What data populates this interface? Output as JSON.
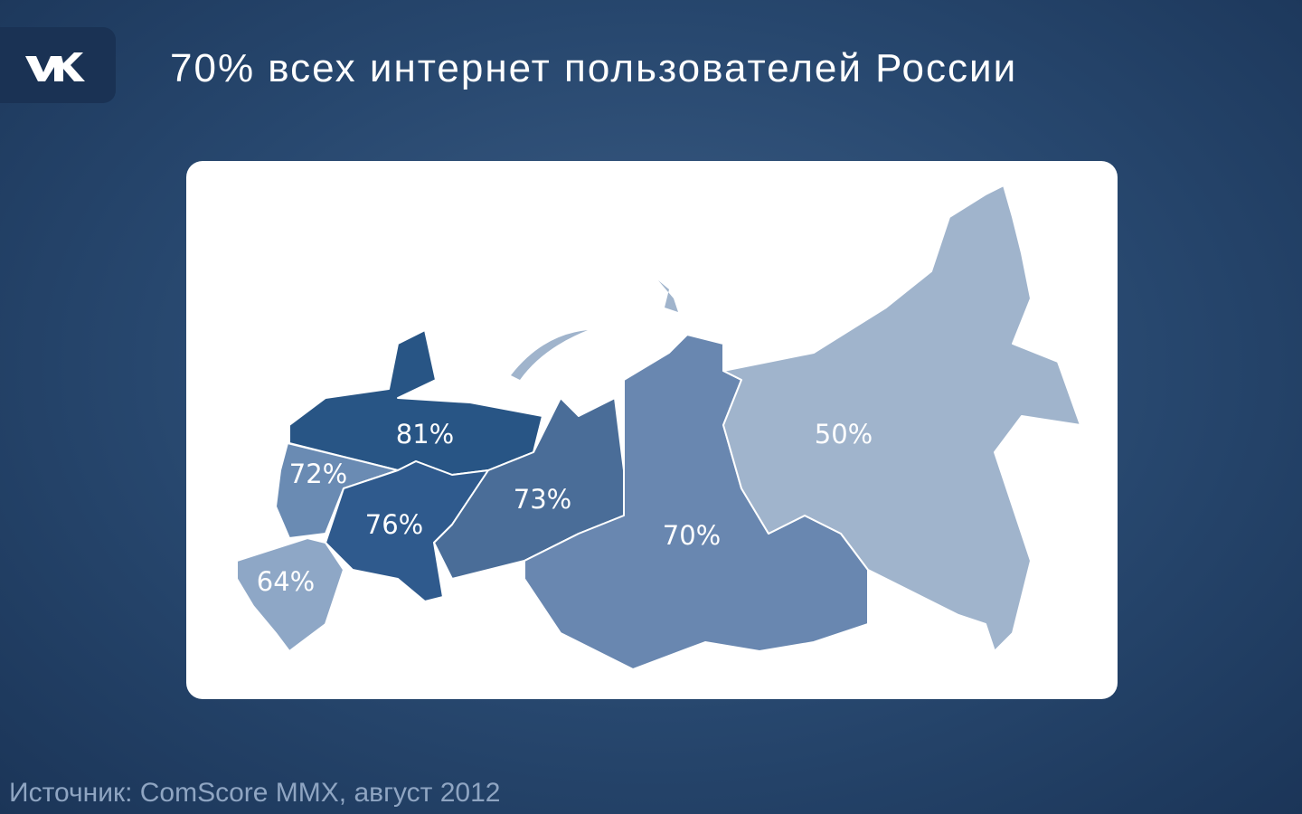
{
  "header": {
    "title": "70% всех интернет пользователей России"
  },
  "map": {
    "regions": [
      {
        "label": "81%",
        "color": "#285585"
      },
      {
        "label": "72%",
        "color": "#6a8bb3"
      },
      {
        "label": "76%",
        "color": "#2f5a8d"
      },
      {
        "label": "64%",
        "color": "#8ea7c6"
      },
      {
        "label": "73%",
        "color": "#4a6d98"
      },
      {
        "label": "70%",
        "color": "#6987b0"
      },
      {
        "label": "50%",
        "color": "#a0b4cc"
      }
    ]
  },
  "source": "Источник: ComScore MMX, август 2012"
}
